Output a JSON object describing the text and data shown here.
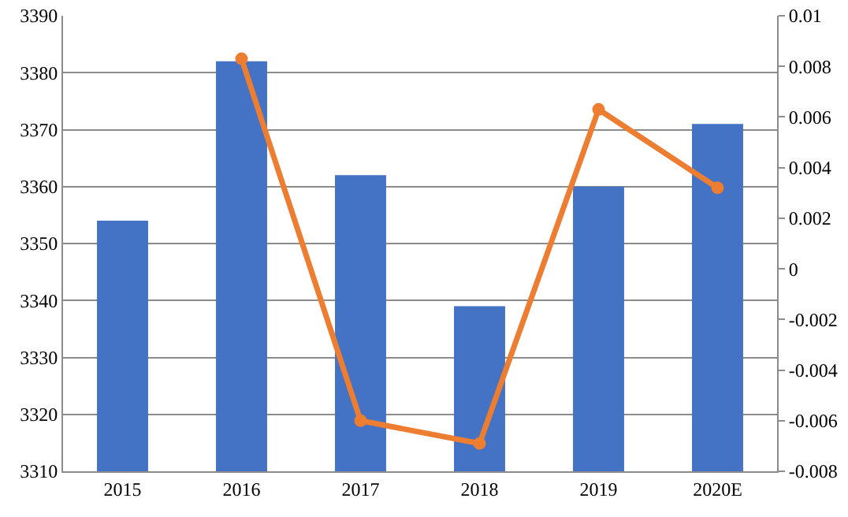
{
  "chart_data": {
    "type": "bar",
    "categories": [
      "2015",
      "2016",
      "2017",
      "2018",
      "2019",
      "2020E"
    ],
    "series": [
      {
        "color": "#4472c4",
        "values": [
          3354,
          3382,
          3362,
          3339,
          3360,
          3371
        ]
      },
      {
        "type": "line",
        "axis": "y2",
        "color": "#ed7d31",
        "marker": "circle",
        "values": [
          null,
          0.0083,
          -0.006,
          -0.0069,
          0.0063,
          0.0032
        ]
      }
    ],
    "ylim": [
      3310,
      3390
    ],
    "yticks": [
      3310,
      3320,
      3330,
      3340,
      3350,
      3360,
      3370,
      3380,
      3390
    ],
    "y2lim": [
      -0.008,
      0.01
    ],
    "y2ticks": [
      -0.008,
      -0.006,
      -0.004,
      -0.002,
      0,
      0.002,
      0.004,
      0.006,
      0.008,
      0.01
    ],
    "grid": "y"
  }
}
